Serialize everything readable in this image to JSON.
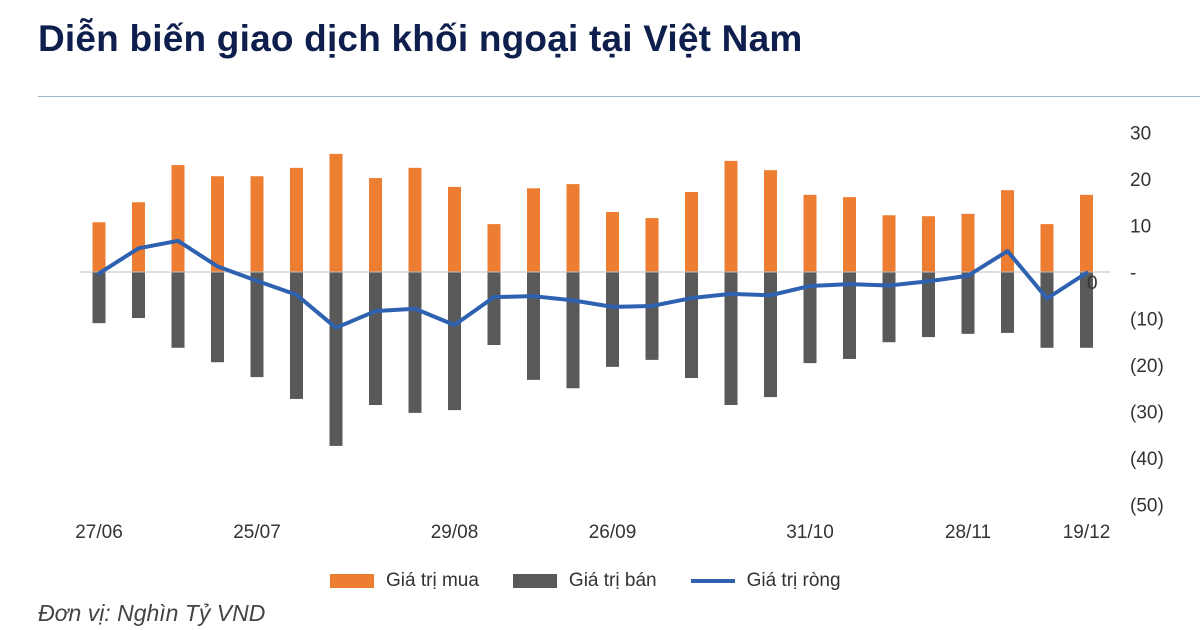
{
  "page": {
    "title": "Diễn biến giao dịch khối ngoại tại Việt Nam",
    "unit_note": "Đơn vị: Nghìn Tỷ VND"
  },
  "legend": {
    "buy": "Giá trị mua",
    "sell": "Giá trị bán",
    "net": "Giá trị ròng"
  },
  "colors": {
    "buy": "#ed7d31",
    "sell": "#595959",
    "net": "#2e62b0",
    "title": "#0f1f4d"
  },
  "chart_data": {
    "type": "bar",
    "title": "Diễn biến giao dịch khối ngoại tại Việt Nam",
    "xlabel": "",
    "ylabel": "Nghìn Tỷ VND",
    "ylim": [
      -50,
      30
    ],
    "yaxis_position": "right",
    "ytick_labels": [
      "30",
      "20",
      "10",
      "-",
      "(10)",
      "(20)",
      "(30)",
      "(40)",
      "(50)"
    ],
    "grid": false,
    "legend_position": "bottom",
    "x_tick_labels": [
      {
        "index": 0,
        "label": "27/06"
      },
      {
        "index": 4,
        "label": "25/07"
      },
      {
        "index": 9,
        "label": "29/08"
      },
      {
        "index": 13,
        "label": "26/09"
      },
      {
        "index": 18,
        "label": "31/10"
      },
      {
        "index": 22,
        "label": "28/11"
      },
      {
        "index": 25,
        "label": "19/12"
      }
    ],
    "annotation": "0",
    "n_points": 26,
    "series": [
      {
        "name": "Giá trị mua",
        "type": "bar",
        "values": [
          10.7,
          15.0,
          23.0,
          20.6,
          20.6,
          22.4,
          25.4,
          20.2,
          22.4,
          18.3,
          10.3,
          18.0,
          18.9,
          12.9,
          11.6,
          17.2,
          23.9,
          21.9,
          16.6,
          16.1,
          12.2,
          12.0,
          12.5,
          17.6,
          10.3,
          16.6
        ]
      },
      {
        "name": "Giá trị bán",
        "type": "bar",
        "values": [
          -11.0,
          -9.9,
          -16.3,
          -19.4,
          -22.6,
          -27.3,
          -37.4,
          -28.6,
          -30.3,
          -29.7,
          -15.7,
          -23.2,
          -25.0,
          -20.4,
          -18.9,
          -22.8,
          -28.6,
          -26.9,
          -19.6,
          -18.7,
          -15.1,
          -14.0,
          -13.3,
          -13.1,
          -16.3,
          -16.3
        ]
      },
      {
        "name": "Giá trị ròng",
        "type": "line",
        "values": [
          -0.3,
          5.1,
          6.7,
          1.2,
          -1.9,
          -4.9,
          -12.0,
          -8.4,
          -7.9,
          -11.4,
          -5.4,
          -5.2,
          -6.1,
          -7.5,
          -7.3,
          -5.6,
          -4.7,
          -5.0,
          -3.0,
          -2.6,
          -2.9,
          -2.0,
          -0.8,
          4.5,
          -5.7,
          -0.2
        ]
      }
    ]
  }
}
